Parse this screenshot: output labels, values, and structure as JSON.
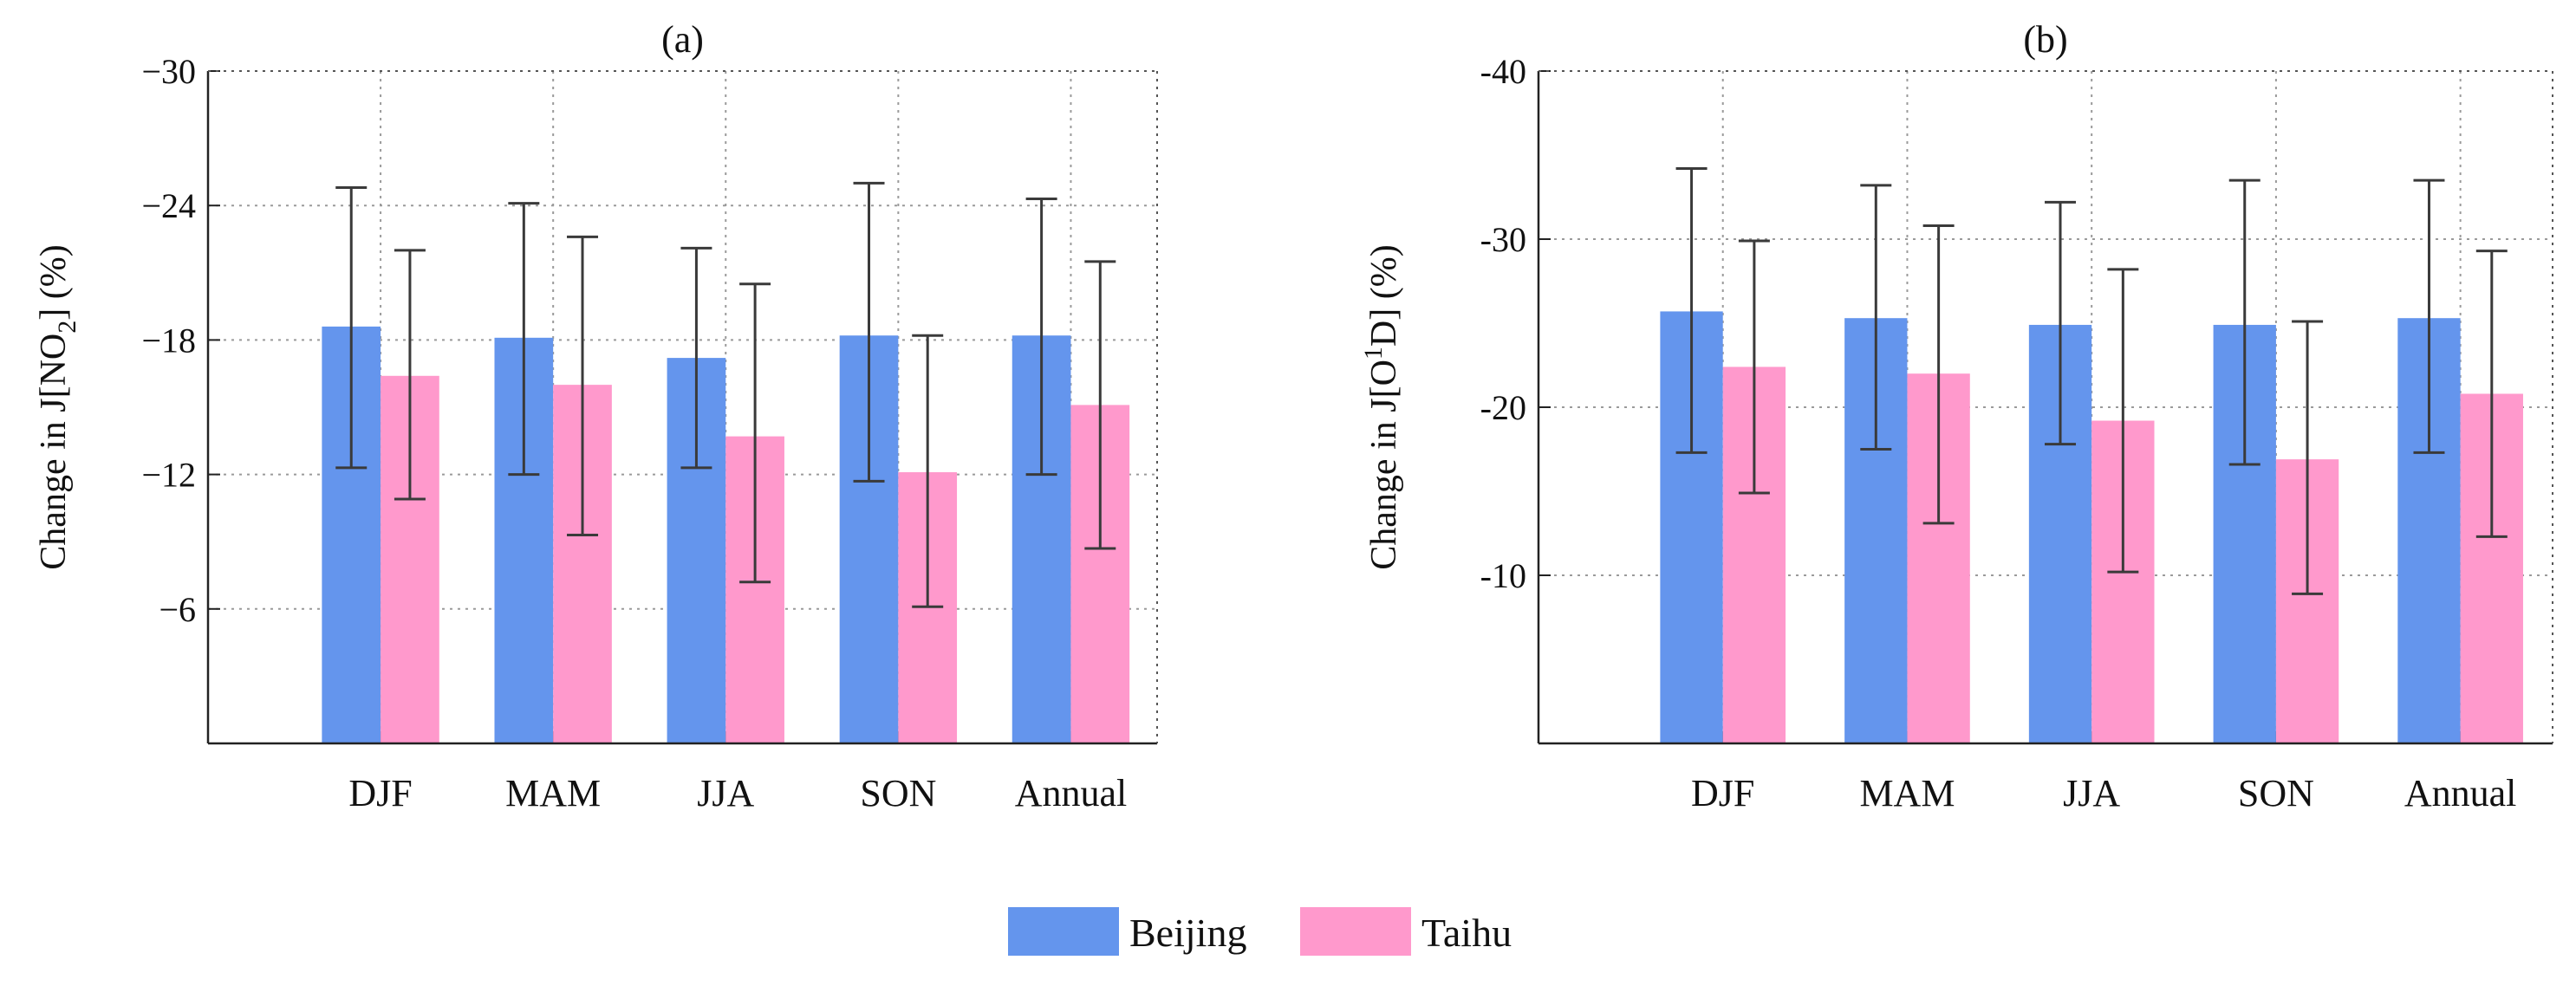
{
  "chart_data": [
    {
      "type": "bar",
      "title": "(a)",
      "ylabel": "Change in J[NO2] (%)",
      "ylabel_parts": {
        "pre": "Change in J[NO",
        "sub": "2",
        "post": "] (%)"
      },
      "categories": [
        "DJF",
        "MAM",
        "JJA",
        "SON",
        "Annual"
      ],
      "ylim": [
        0,
        -30
      ],
      "yticks": [
        -30,
        -24,
        -18,
        -12,
        -6
      ],
      "ytick_labels": [
        "−30",
        "−24",
        "−18",
        "−12",
        "−6"
      ],
      "grid": true,
      "series": [
        {
          "name": "Beijing",
          "color": "#6495ED",
          "values": [
            -18.6,
            -18.1,
            -17.2,
            -18.2,
            -18.2
          ],
          "err_low": [
            -12.3,
            -12.0,
            -12.3,
            -11.7,
            -12.0
          ],
          "err_high": [
            -24.8,
            -24.1,
            -22.1,
            -25.0,
            -24.3
          ]
        },
        {
          "name": "Taihu",
          "color": "#FF99CC",
          "values": [
            -16.4,
            -16.0,
            -13.7,
            -12.1,
            -15.1
          ],
          "err_low": [
            -10.9,
            -9.3,
            -7.2,
            -6.1,
            -8.7
          ],
          "err_high": [
            -22.0,
            -22.6,
            -20.5,
            -18.2,
            -21.5
          ]
        }
      ]
    },
    {
      "type": "bar",
      "title": "(b)",
      "ylabel": "Change in J[O1D] (%)",
      "ylabel_parts": {
        "pre": "Change in J[O",
        "sup": "1",
        "post": "D] (%)"
      },
      "categories": [
        "DJF",
        "MAM",
        "JJA",
        "SON",
        "Annual"
      ],
      "ylim": [
        0,
        -40
      ],
      "yticks": [
        -40,
        -30,
        -20,
        -10
      ],
      "ytick_labels": [
        "-40",
        "-30",
        "-20",
        "-10"
      ],
      "grid": true,
      "series": [
        {
          "name": "Beijing",
          "color": "#6495ED",
          "values": [
            -25.7,
            -25.3,
            -24.9,
            -24.9,
            -25.3
          ],
          "err_low": [
            -17.3,
            -17.5,
            -17.8,
            -16.6,
            -17.3
          ],
          "err_high": [
            -34.2,
            -33.2,
            -32.2,
            -33.5,
            -33.5
          ]
        },
        {
          "name": "Taihu",
          "color": "#FF99CC",
          "values": [
            -22.4,
            -22.0,
            -19.2,
            -16.9,
            -20.8
          ],
          "err_low": [
            -14.9,
            -13.1,
            -10.2,
            -8.9,
            -12.3
          ],
          "err_high": [
            -29.9,
            -30.8,
            -28.2,
            -25.1,
            -29.3
          ]
        }
      ]
    }
  ],
  "legend": {
    "position": "bottom-center",
    "items": [
      {
        "label": "Beijing",
        "color": "#6495ED"
      },
      {
        "label": "Taihu",
        "color": "#FF99CC"
      }
    ]
  }
}
